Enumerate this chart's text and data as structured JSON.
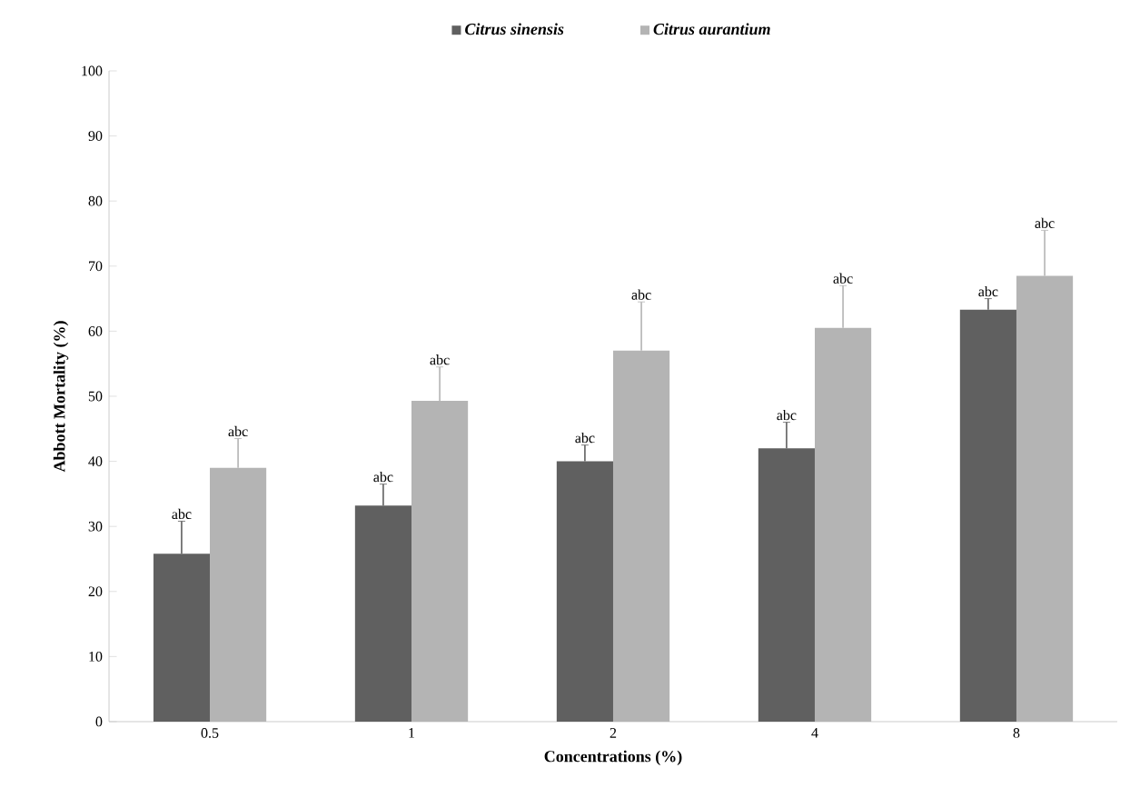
{
  "chart_data": {
    "type": "bar",
    "xlabel": "Concentrations (%)",
    "ylabel": "Abbott Mortality (%)",
    "categories": [
      "0.5",
      "1",
      "2",
      "4",
      "8"
    ],
    "series": [
      {
        "name": "Citrus sinensis",
        "color": "#606060",
        "values": [
          25.8,
          33.2,
          40,
          42,
          63.3
        ],
        "errors": [
          5,
          3.3,
          2.5,
          4,
          1.7
        ]
      },
      {
        "name": "Citrus aurantium",
        "color": "#b4b4b4",
        "values": [
          39,
          49.3,
          57,
          60.5,
          68.5
        ],
        "errors": [
          4.5,
          5.2,
          7.5,
          6.5,
          7
        ]
      }
    ],
    "ylim": [
      0,
      100
    ],
    "yticks": [
      0,
      10,
      20,
      30,
      40,
      50,
      60,
      70,
      80,
      90,
      100
    ],
    "legend": "top",
    "grid": false,
    "annotations": [
      "abc",
      "abc",
      "abc",
      "abc",
      "abc",
      "abc",
      "abc",
      "abc",
      "abc",
      "abc"
    ]
  }
}
